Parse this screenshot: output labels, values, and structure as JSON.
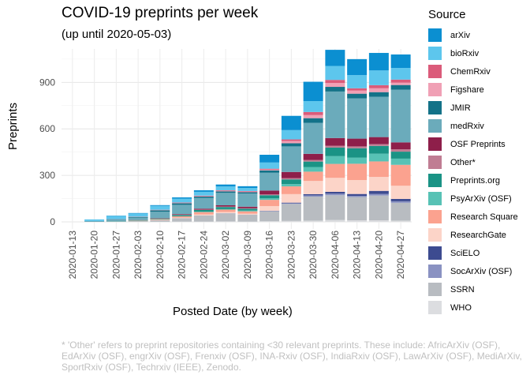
{
  "chart_data": {
    "type": "bar",
    "stacked": true,
    "title": "COVID-19 preprints per week",
    "subtitle": "(up until 2020-05-03)",
    "xlabel": "Posted Date (by week)",
    "ylabel": "Preprints",
    "ylim": [
      0,
      1130
    ],
    "yticks": [
      0,
      300,
      600,
      900
    ],
    "grid": true,
    "legend_title": "Source",
    "legend_position": "right",
    "categories": [
      "2020-01-13",
      "2020-01-20",
      "2020-01-27",
      "2020-02-03",
      "2020-02-10",
      "2020-02-17",
      "2020-02-24",
      "2020-03-02",
      "2020-03-09",
      "2020-03-16",
      "2020-03-23",
      "2020-03-30",
      "2020-04-06",
      "2020-04-13",
      "2020-04-20",
      "2020-04-27"
    ],
    "series": [
      {
        "name": "WHO",
        "color": "#dcdde0",
        "values": [
          0,
          0,
          0,
          1,
          1,
          2,
          2,
          3,
          2,
          4,
          6,
          8,
          12,
          10,
          10,
          8
        ]
      },
      {
        "name": "SSRN",
        "color": "#b8bcc1",
        "values": [
          0,
          0,
          2,
          5,
          10,
          22,
          40,
          52,
          44,
          64,
          110,
          155,
          160,
          150,
          160,
          115
        ]
      },
      {
        "name": "SocArXiv (OSF)",
        "color": "#8a92c2",
        "values": [
          0,
          0,
          0,
          0,
          0,
          0,
          0,
          1,
          1,
          2,
          4,
          8,
          10,
          8,
          10,
          10
        ]
      },
      {
        "name": "SciELO",
        "color": "#3d4b90",
        "values": [
          0,
          0,
          0,
          0,
          0,
          0,
          0,
          0,
          0,
          2,
          4,
          8,
          12,
          12,
          20,
          15
        ]
      },
      {
        "name": "ResearchGate",
        "color": "#fcd4c8",
        "values": [
          0,
          0,
          0,
          0,
          2,
          4,
          6,
          8,
          6,
          30,
          55,
          85,
          90,
          90,
          90,
          85
        ]
      },
      {
        "name": "Research Square",
        "color": "#fba28f",
        "values": [
          0,
          0,
          0,
          2,
          4,
          8,
          15,
          15,
          15,
          40,
          50,
          60,
          90,
          105,
          100,
          135
        ]
      },
      {
        "name": "PsyArXiv (OSF)",
        "color": "#57c2b5",
        "values": [
          0,
          0,
          0,
          0,
          0,
          0,
          2,
          3,
          5,
          10,
          15,
          30,
          50,
          40,
          50,
          40
        ]
      },
      {
        "name": "Preprints.org",
        "color": "#1a9385",
        "values": [
          0,
          0,
          2,
          3,
          5,
          8,
          12,
          14,
          12,
          20,
          30,
          35,
          55,
          60,
          50,
          45
        ]
      },
      {
        "name": "Other*",
        "color": "#c07d93",
        "values": [
          0,
          0,
          0,
          0,
          1,
          2,
          2,
          3,
          3,
          5,
          8,
          10,
          12,
          12,
          12,
          15
        ]
      },
      {
        "name": "OSF Preprints",
        "color": "#8e1f4a",
        "values": [
          0,
          0,
          0,
          1,
          2,
          4,
          6,
          8,
          10,
          25,
          40,
          40,
          50,
          50,
          45,
          45
        ]
      },
      {
        "name": "medRxiv",
        "color": "#6babbb",
        "values": [
          0,
          5,
          10,
          15,
          40,
          60,
          70,
          80,
          85,
          115,
          165,
          200,
          300,
          260,
          260,
          340
        ]
      },
      {
        "name": "JMIR",
        "color": "#137288",
        "values": [
          0,
          1,
          3,
          5,
          10,
          10,
          8,
          10,
          8,
          15,
          20,
          30,
          30,
          30,
          30,
          30
        ]
      },
      {
        "name": "Figshare",
        "color": "#f0a0b5",
        "values": [
          0,
          0,
          1,
          1,
          2,
          3,
          3,
          4,
          5,
          5,
          15,
          20,
          25,
          20,
          25,
          15
        ]
      },
      {
        "name": "ChemRxiv",
        "color": "#db5b7a",
        "values": [
          0,
          0,
          0,
          1,
          1,
          2,
          3,
          3,
          3,
          6,
          10,
          20,
          20,
          15,
          20,
          20
        ]
      },
      {
        "name": "bioRxiv",
        "color": "#5dc6ed",
        "values": [
          0,
          10,
          20,
          20,
          25,
          25,
          25,
          25,
          20,
          40,
          60,
          70,
          90,
          85,
          95,
          75
        ]
      },
      {
        "name": "arXiv",
        "color": "#0b8fd1",
        "values": [
          0,
          0,
          2,
          3,
          5,
          8,
          10,
          12,
          11,
          50,
          92,
          125,
          104,
          103,
          113,
          87
        ]
      }
    ]
  },
  "caption": "* 'Other' refers to preprint repositories containing <30 relevant preprints. These include: AfricArXiv (OSF),\nEdArXiv (OSF), engrXiv (OSF), Frenxiv (OSF), INA-Rxiv (OSF), IndiaRxiv (OSF), LawArXiv (OSF), MediArXiv,\nSportRxiv (OSF), Techrxiv (IEEE), Zenodo.",
  "legend_items": [
    "arXiv",
    "bioRxiv",
    "ChemRxiv",
    "Figshare",
    "JMIR",
    "medRxiv",
    "OSF Preprints",
    "Other*",
    "Preprints.org",
    "PsyArXiv (OSF)",
    "Research Square",
    "ResearchGate",
    "SciELO",
    "SocArXiv (OSF)",
    "SSRN",
    "WHO"
  ]
}
